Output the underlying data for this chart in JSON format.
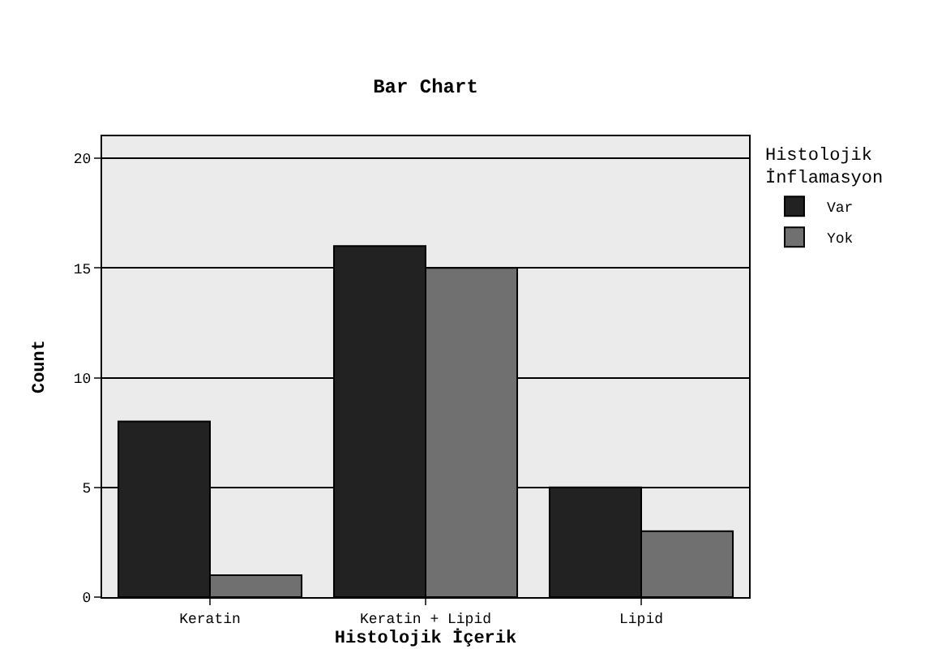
{
  "chart_data": {
    "type": "bar",
    "title": "Bar Chart",
    "xlabel": "Histolojik İçerik",
    "ylabel": "Count",
    "legend_title": "Histolojik İnflamasyon",
    "categories": [
      "Keratin",
      "Keratin + Lipid",
      "Lipid"
    ],
    "series": [
      {
        "name": "Var",
        "color": "#222222",
        "values": [
          8,
          16,
          5
        ]
      },
      {
        "name": "Yok",
        "color": "#707070",
        "values": [
          1,
          15,
          3
        ]
      }
    ],
    "ylim": [
      0,
      21
    ],
    "yticks": [
      0,
      5,
      10,
      15,
      20
    ],
    "grid": "y",
    "legend": "top right"
  }
}
